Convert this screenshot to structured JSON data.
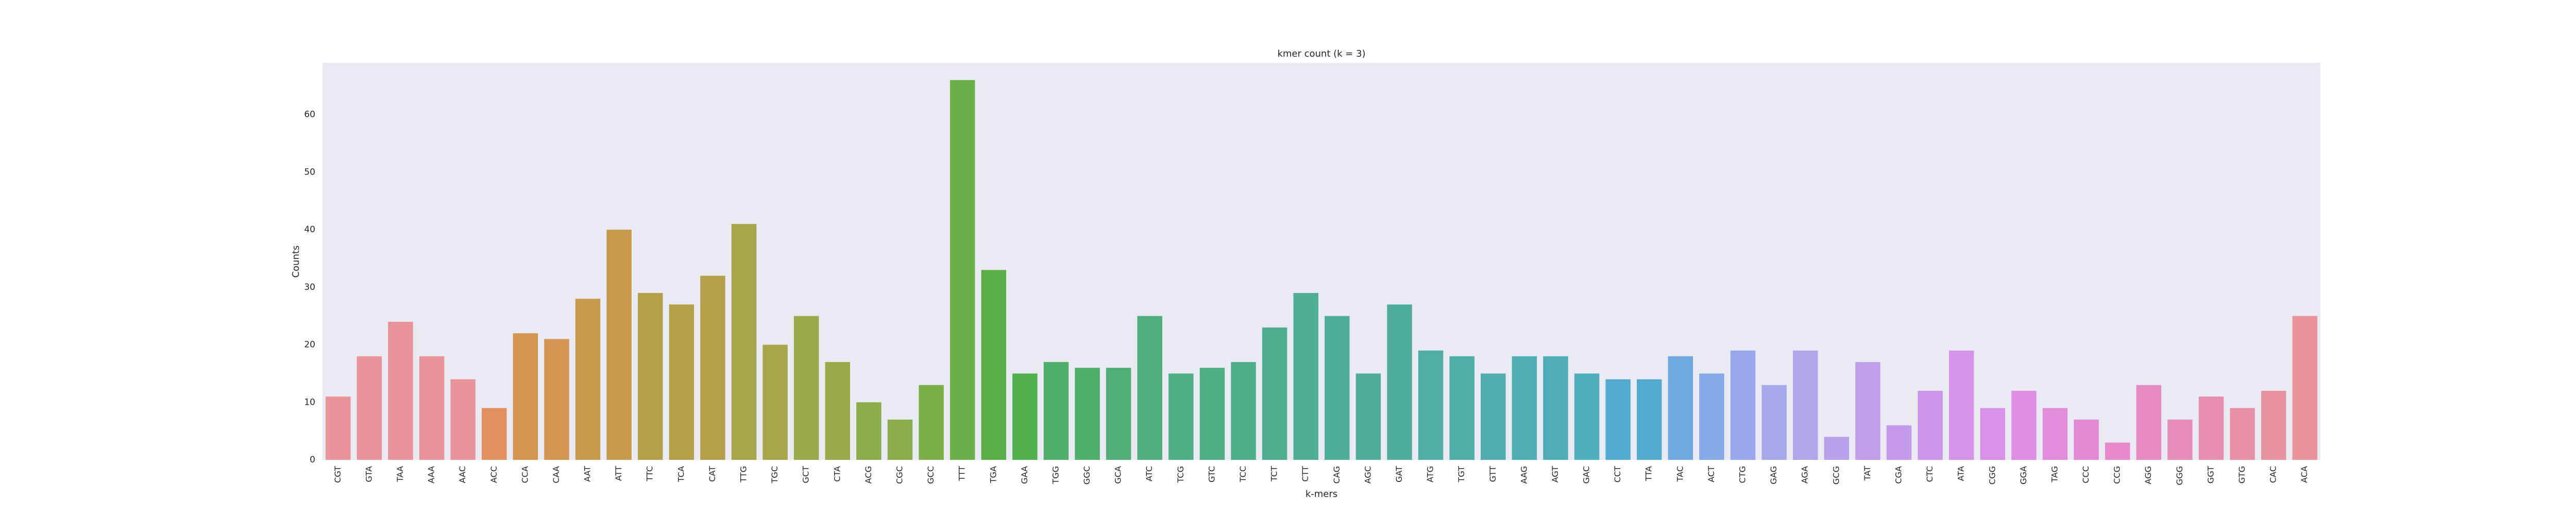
{
  "chart_data": {
    "type": "bar",
    "title": "kmer count (k = 3)",
    "xlabel": "k-mers",
    "ylabel": "Counts",
    "ylim": [
      0,
      69
    ],
    "yticks": [
      0,
      10,
      20,
      30,
      40,
      50,
      60
    ],
    "grid": false,
    "categories": [
      "CGT",
      "GTA",
      "TAA",
      "AAA",
      "AAC",
      "ACC",
      "CCA",
      "CAA",
      "AAT",
      "ATT",
      "TTC",
      "TCA",
      "CAT",
      "TTG",
      "TGC",
      "GCT",
      "CTA",
      "ACG",
      "CGC",
      "GCC",
      "TTT",
      "TGA",
      "GAA",
      "TGG",
      "GGC",
      "GCA",
      "ATC",
      "TCG",
      "GTC",
      "TCC",
      "TCT",
      "CTT",
      "CAG",
      "AGC",
      "GAT",
      "ATG",
      "TGT",
      "GTT",
      "AAG",
      "AGT",
      "GAC",
      "CCT",
      "TTA",
      "TAC",
      "ACT",
      "CTG",
      "GAG",
      "AGA",
      "GCG",
      "TAT",
      "CGA",
      "CTC",
      "ATA",
      "CGG",
      "GGA",
      "TAG",
      "CCC",
      "CCG",
      "AGG",
      "GGG",
      "GGT",
      "GTG",
      "CAC",
      "ACA"
    ],
    "values": [
      11,
      18,
      24,
      18,
      14,
      9,
      22,
      21,
      28,
      40,
      29,
      27,
      32,
      41,
      20,
      25,
      17,
      10,
      7,
      13,
      66,
      33,
      15,
      17,
      16,
      16,
      25,
      15,
      16,
      17,
      23,
      29,
      25,
      15,
      27,
      19,
      18,
      15,
      18,
      18,
      15,
      14,
      14,
      18,
      15,
      19,
      13,
      19,
      4,
      17,
      6,
      12,
      19,
      9,
      12,
      9,
      7,
      3,
      13,
      7,
      11,
      9,
      12,
      25
    ],
    "colors": [
      "#e9949b",
      "#e9949b",
      "#e9949b",
      "#e9949b",
      "#e9949b",
      "#e3905f",
      "#d59552",
      "#d59552",
      "#c69a4a",
      "#c69a4a",
      "#b5a04a",
      "#b5a04a",
      "#b5a04a",
      "#a8a64a",
      "#a8a64a",
      "#9aa94a",
      "#9aa94a",
      "#8aac4a",
      "#8aac4a",
      "#7aaf4a",
      "#6aaf4a",
      "#5aae4a",
      "#4fb04d",
      "#4fae6a",
      "#4fae6a",
      "#4fae75",
      "#4fae7c",
      "#4fae84",
      "#4fae84",
      "#4fae8a",
      "#4fae90",
      "#4fae94",
      "#4fae96",
      "#4fad9a",
      "#4fad9e",
      "#4fada4",
      "#4fada8",
      "#4fadae",
      "#4fadb4",
      "#4fadb8",
      "#4faebe",
      "#52acd0",
      "#52acd0",
      "#70a8e0",
      "#85a8e6",
      "#98a8ea",
      "#a6a8ea",
      "#b0a6ea",
      "#b6a2ea",
      "#c09eea",
      "#c69aea",
      "#cc96ea",
      "#d694e8",
      "#da92e8",
      "#de8ee4",
      "#e28cdc",
      "#e48ad4",
      "#e68acc",
      "#e68ac2",
      "#e68cb8",
      "#e68eb0",
      "#e690a8",
      "#e692a0",
      "#e8949a"
    ]
  }
}
